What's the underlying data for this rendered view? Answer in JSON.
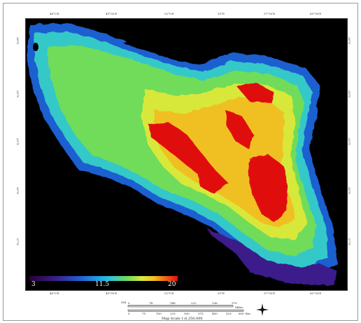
{
  "map": {
    "top_ticks": [
      "46°0'E",
      "49°30'E",
      "52°0'E",
      "55°E",
      "57°30'E",
      "60°30'E"
    ],
    "left_ticks": [
      "38°N",
      "35°N",
      "33°N",
      "30°N",
      "27°N"
    ],
    "right_ticks": [
      "38°N",
      "35°N",
      "33°N",
      "30°N",
      "27°N"
    ],
    "bottom_ticks": [
      "46°0'E",
      "49°30'E",
      "52°0'E",
      "55°E",
      "57°30'E",
      "60°30'E"
    ]
  },
  "legend": {
    "min_label": "3",
    "mid_label": "11.5",
    "max_label": "20",
    "colors": [
      "#2a003a",
      "#3a1f8a",
      "#1f5fd0",
      "#1fa8e8",
      "#34c8c8",
      "#6fdc5a",
      "#d8e83a",
      "#f0c020",
      "#f06010",
      "#e01010"
    ]
  },
  "scale_bar": {
    "unit_top": "GM",
    "top_values": [
      "0",
      "74",
      "148",
      "222",
      "296",
      "370"
    ],
    "top_unit": "Miles",
    "bottom_values": [
      "0",
      "75",
      "150",
      "225",
      "300",
      "375",
      "450",
      "525",
      "600"
    ],
    "bottom_unit": "Km",
    "scale_text": "Map Scale 1:6,250,000"
  }
}
